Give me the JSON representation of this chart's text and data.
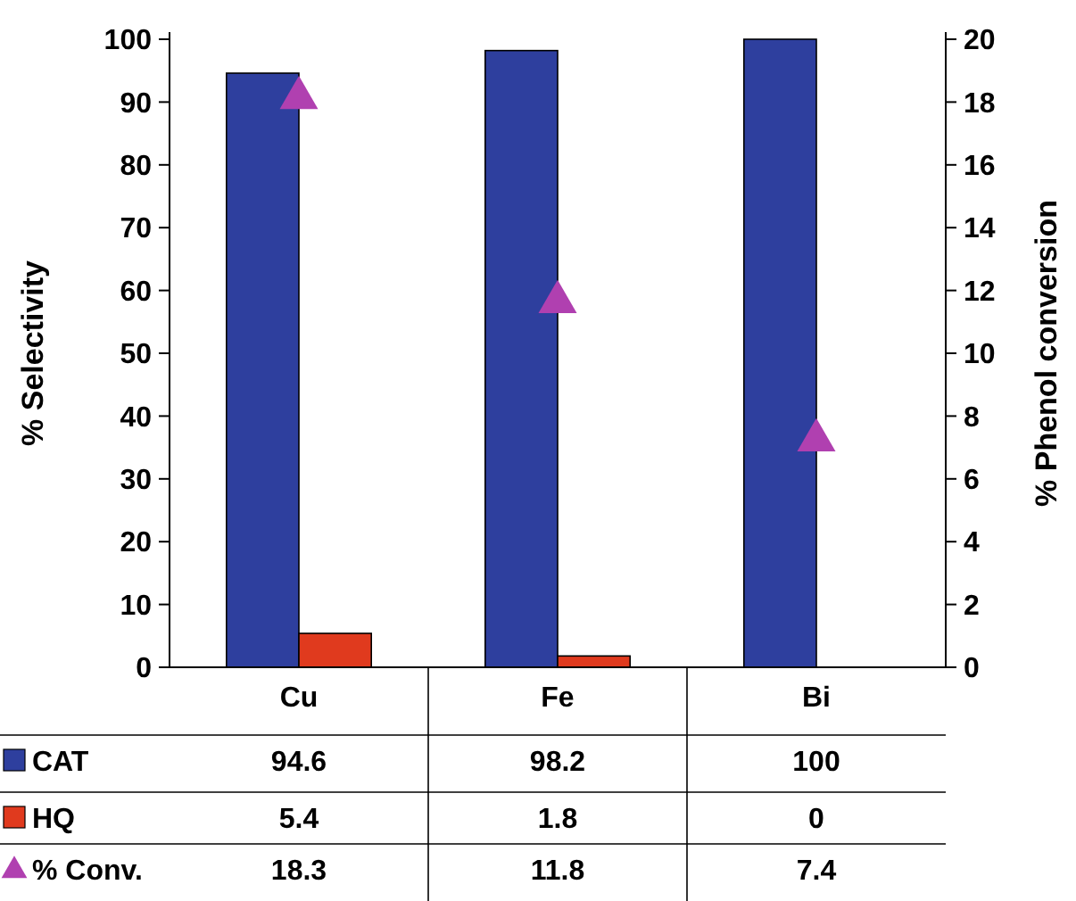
{
  "chart_data": {
    "type": "bar",
    "ylabel": "% Selectivity",
    "y2label": "% Phenol conversion",
    "categories": [
      "Cu",
      "Fe",
      "Bi"
    ],
    "ylim": [
      0,
      100
    ],
    "yticks": [
      0,
      10,
      20,
      30,
      40,
      50,
      60,
      70,
      80,
      90,
      100
    ],
    "y2lim": [
      0,
      20
    ],
    "y2ticks": [
      0,
      2,
      4,
      6,
      8,
      10,
      12,
      14,
      16,
      18,
      20
    ],
    "series": [
      {
        "name": "CAT",
        "color": "#2e3f9e",
        "values": [
          94.6,
          98.2,
          100
        ]
      },
      {
        "name": "HQ",
        "color": "#e03a1e",
        "values": [
          5.4,
          1.8,
          0
        ]
      },
      {
        "name": "% Conv.",
        "type": "scatter",
        "axis": "y2",
        "marker": "triangle",
        "color": "#b040b0",
        "values": [
          18.3,
          11.8,
          7.4
        ]
      }
    ],
    "data_labels": true,
    "legend": "bottom left"
  }
}
